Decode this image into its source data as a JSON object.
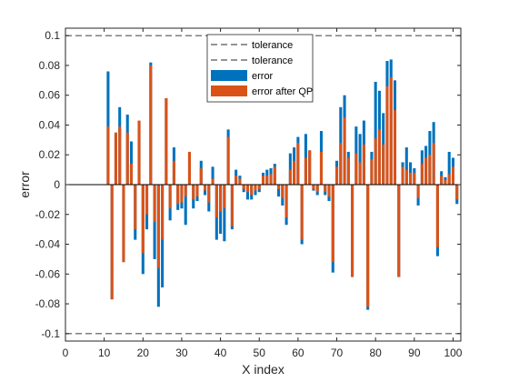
{
  "chart_data": {
    "type": "bar",
    "xlabel": "X index",
    "ylabel": "error",
    "xlim": [
      0,
      102
    ],
    "ylim": [
      -0.105,
      0.105
    ],
    "xticks": [
      "0",
      "10",
      "20",
      "30",
      "40",
      "50",
      "60",
      "70",
      "80",
      "90",
      "100"
    ],
    "yticks": [
      "-0.1",
      "-0.08",
      "-0.06",
      "-0.04",
      "-0.02",
      "0",
      "0.02",
      "0.04",
      "0.06",
      "0.08",
      "0.1"
    ],
    "tolerance": [
      0.1,
      -0.1
    ],
    "legend": {
      "location": "top-center",
      "entries": [
        "tolerance",
        "tolerance",
        "error",
        "error after QP"
      ]
    },
    "colors": {
      "error": "#0072BD",
      "error_after_qp": "#D95319",
      "tolerance": "#555555"
    },
    "series": [
      {
        "name": "error",
        "x": [
          11,
          12,
          13,
          14,
          15,
          16,
          17,
          18,
          19,
          20,
          21,
          22,
          23,
          24,
          25,
          26,
          27,
          28,
          29,
          30,
          31,
          32,
          33,
          34,
          35,
          36,
          37,
          38,
          39,
          40,
          41,
          42,
          43,
          44,
          45,
          46,
          47,
          48,
          49,
          50,
          51,
          52,
          53,
          54,
          55,
          56,
          57,
          58,
          59,
          60,
          61,
          62,
          63,
          64,
          65,
          66,
          67,
          68,
          69,
          70,
          71,
          72,
          73,
          74,
          75,
          76,
          77,
          78,
          79,
          80,
          81,
          82,
          83,
          84,
          85,
          86,
          87,
          88,
          89,
          90,
          91,
          92,
          93,
          94,
          95,
          96,
          97,
          98,
          99,
          100,
          101
        ],
        "values": [
          0.076,
          -0.077,
          0.034,
          0.052,
          -0.052,
          0.047,
          0.029,
          -0.037,
          0.042,
          -0.06,
          -0.03,
          0.082,
          -0.05,
          -0.082,
          -0.069,
          0.058,
          -0.024,
          0.025,
          -0.017,
          -0.016,
          -0.027,
          0.022,
          -0.016,
          -0.011,
          0.016,
          -0.007,
          -0.018,
          0.012,
          -0.037,
          -0.033,
          -0.038,
          0.037,
          -0.03,
          0.01,
          0.006,
          -0.005,
          -0.01,
          -0.01,
          -0.007,
          -0.005,
          0.008,
          0.01,
          0.011,
          0.014,
          -0.008,
          -0.014,
          -0.027,
          0.021,
          0.025,
          0.032,
          -0.04,
          0.034,
          0.023,
          -0.004,
          -0.007,
          0.036,
          -0.007,
          -0.011,
          -0.059,
          0.016,
          0.052,
          0.06,
          0.022,
          -0.062,
          0.039,
          0.034,
          0.043,
          -0.084,
          0.022,
          0.069,
          0.063,
          0.048,
          0.083,
          0.084,
          0.07,
          -0.062,
          0.015,
          0.025,
          0.015,
          0.011,
          -0.014,
          0.023,
          0.026,
          0.036,
          0.042,
          -0.048,
          0.009,
          0.005,
          0.022,
          0.018,
          -0.013
        ]
      },
      {
        "name": "error after QP",
        "x": [
          11,
          12,
          13,
          14,
          15,
          16,
          17,
          18,
          19,
          20,
          21,
          22,
          23,
          24,
          25,
          26,
          27,
          28,
          29,
          30,
          31,
          32,
          33,
          34,
          35,
          36,
          37,
          38,
          39,
          40,
          41,
          42,
          43,
          44,
          45,
          46,
          47,
          48,
          49,
          50,
          51,
          52,
          53,
          54,
          55,
          56,
          57,
          58,
          59,
          60,
          61,
          62,
          63,
          64,
          65,
          66,
          67,
          68,
          69,
          70,
          71,
          72,
          73,
          74,
          75,
          76,
          77,
          78,
          79,
          80,
          81,
          82,
          83,
          84,
          85,
          86,
          87,
          88,
          89,
          90,
          91,
          92,
          93,
          94,
          95,
          96,
          97,
          98,
          99,
          100,
          101
        ],
        "values": [
          0.039,
          -0.077,
          0.035,
          0.039,
          -0.052,
          0.035,
          0.014,
          -0.03,
          0.043,
          -0.046,
          -0.02,
          0.08,
          -0.025,
          -0.056,
          -0.037,
          0.058,
          -0.016,
          0.016,
          -0.013,
          -0.012,
          -0.008,
          0.022,
          -0.01,
          -0.008,
          0.011,
          -0.004,
          -0.012,
          0.004,
          -0.022,
          -0.018,
          -0.016,
          0.032,
          -0.028,
          0.006,
          0.004,
          -0.003,
          -0.005,
          -0.007,
          -0.004,
          -0.003,
          0.006,
          0.006,
          0.007,
          0.012,
          -0.003,
          -0.009,
          -0.022,
          0.01,
          0.016,
          0.028,
          -0.037,
          0.018,
          0.023,
          -0.003,
          -0.005,
          0.022,
          -0.005,
          -0.008,
          -0.052,
          0.012,
          0.028,
          0.045,
          0.018,
          -0.062,
          0.021,
          0.015,
          0.027,
          -0.082,
          0.017,
          0.031,
          0.037,
          0.027,
          0.066,
          0.072,
          0.05,
          -0.062,
          0.012,
          0.01,
          0.008,
          0.008,
          -0.009,
          0.014,
          0.018,
          0.02,
          0.028,
          -0.042,
          0.006,
          0.003,
          0.007,
          0.012,
          -0.01
        ]
      }
    ]
  }
}
